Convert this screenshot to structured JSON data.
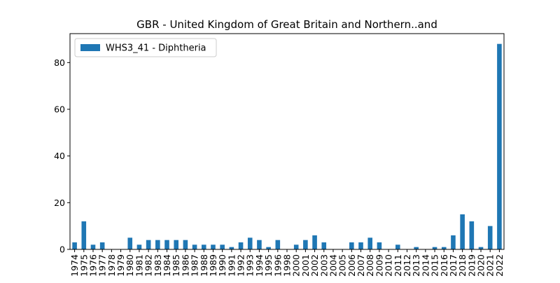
{
  "chart_data": {
    "type": "bar",
    "title": "GBR - United Kingdom of Great Britain and Northern..and",
    "categories": [
      "1974",
      "1975",
      "1976",
      "1977",
      "1978",
      "1979",
      "1980",
      "1981",
      "1982",
      "1983",
      "1984",
      "1985",
      "1986",
      "1987",
      "1988",
      "1989",
      "1990",
      "1991",
      "1992",
      "1993",
      "1994",
      "1995",
      "1996",
      "1998",
      "2000",
      "2001",
      "2002",
      "2003",
      "2004",
      "2005",
      "2006",
      "2007",
      "2008",
      "2009",
      "2010",
      "2011",
      "2012",
      "2013",
      "2014",
      "2015",
      "2016",
      "2017",
      "2018",
      "2019",
      "2020",
      "2021",
      "2022"
    ],
    "series": [
      {
        "name": "WHS3_41 - Diphtheria",
        "color": "#1f77b4",
        "values": [
          3,
          12,
          2,
          3,
          0,
          0,
          5,
          2,
          4,
          4,
          4,
          4,
          4,
          2,
          2,
          2,
          2,
          1,
          3,
          5,
          4,
          1,
          4,
          0,
          2,
          4,
          6,
          3,
          0,
          0,
          3,
          3,
          5,
          3,
          0,
          2,
          0,
          1,
          0,
          1,
          1,
          6,
          15,
          12,
          1,
          10,
          88
        ]
      }
    ],
    "ylim": [
      0,
      92.4
    ],
    "yticks": [
      0,
      20,
      40,
      60,
      80
    ],
    "legend": "upper left",
    "grid": false
  }
}
